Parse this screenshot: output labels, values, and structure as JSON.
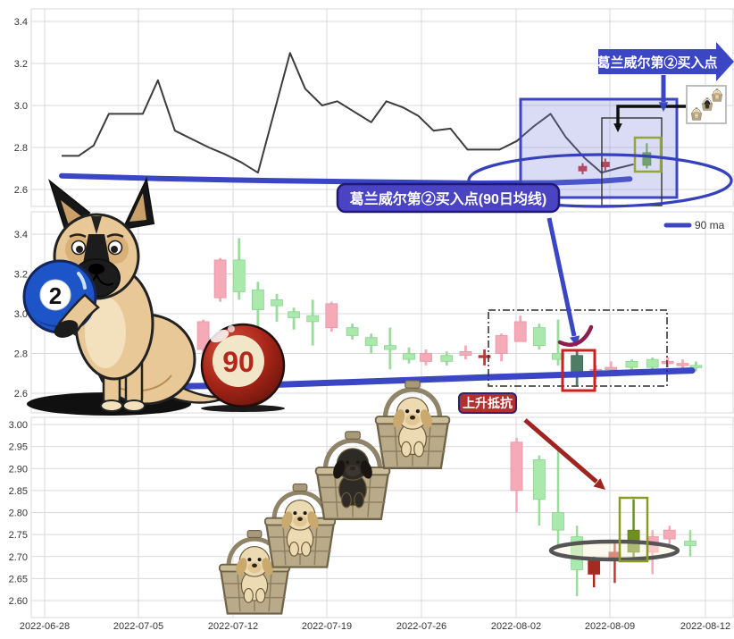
{
  "annotations": {
    "banner_top": "葛兰威尔第②买入点",
    "mid_label": "葛兰威尔第②买入点(90日均线)",
    "resist_label": "上升抵抗",
    "legend_90ma": "90 ma"
  },
  "decorations": {
    "dog_illustration": "belgian-malinois-holding-ball",
    "ball2_label": "2",
    "ball90_label": "90",
    "puppy_baskets": [
      "golden-puppy-basket",
      "golden-puppy-basket",
      "black-puppy-basket",
      "golden-puppy-basket"
    ],
    "inset_thumbnail": "mini-puppy-basket-diagonal"
  },
  "colors": {
    "up_green": "#a9e9ab",
    "up_green_edge": "#8fd392",
    "down_pink": "#f5aab8",
    "down_pink_edge": "#eb93a4",
    "red": "#c63535",
    "dark_red": "#a52a21",
    "dark_green": "#4e7d66",
    "olive": "#6f8f1f",
    "boxed_green": "#72b043",
    "ma_blue": "#3a46c4",
    "line_dark": "#3c3c3c",
    "banner_blue": "#3a46c4",
    "annotation_indigo": "#4a44c2",
    "annotation_border": "#1f1878",
    "resist_red": "#b23030",
    "resist_border": "#2c2470",
    "grid": "#d9d9d9",
    "axis_text": "#333333",
    "highlight_box_red": "#cc1f1f",
    "highlight_box_olive": "#8a9a25",
    "highlight_box_green": "#95a53a",
    "ellipse_blue": "#3540bb",
    "arrow_dark_red": "#9e2420",
    "maroon_swoosh": "#8d1e4e",
    "gray_ellipse": "#555555",
    "shade_fill": "rgba(120,130,215,0.28)"
  },
  "x_axis": {
    "tick_labels": [
      "2022-06-28",
      "2022-07-05",
      "2022-07-12",
      "2022-07-19",
      "2022-07-26",
      "2022-08-02",
      "2022-08-09",
      "2022-08-12"
    ],
    "note": "trading-day axis"
  },
  "chart_data": [
    {
      "id": "top",
      "type": "line",
      "title": "",
      "y_ticks": [
        "3.4",
        "3.2",
        "3.0",
        "2.8",
        "2.6"
      ],
      "ylim": [
        2.52,
        3.46
      ],
      "close_line": [
        [
          0.9,
          2.76
        ],
        [
          1.8,
          2.76
        ],
        [
          2.6,
          2.81
        ],
        [
          3.4,
          2.96
        ],
        [
          5.2,
          2.96
        ],
        [
          6.0,
          3.12
        ],
        [
          6.9,
          2.88
        ],
        [
          7.8,
          2.84
        ],
        [
          8.7,
          2.8
        ],
        [
          9.5,
          2.77
        ],
        [
          10.4,
          2.73
        ],
        [
          11.3,
          2.68
        ],
        [
          13.0,
          3.25
        ],
        [
          13.8,
          3.08
        ],
        [
          14.7,
          3.0
        ],
        [
          15.5,
          3.02
        ],
        [
          16.4,
          2.97
        ],
        [
          17.3,
          2.92
        ],
        [
          18.1,
          3.02
        ],
        [
          19.0,
          2.99
        ],
        [
          19.8,
          2.95
        ],
        [
          20.6,
          2.88
        ],
        [
          21.5,
          2.89
        ],
        [
          22.4,
          2.79
        ],
        [
          24.1,
          2.79
        ],
        [
          25.0,
          2.83
        ],
        [
          25.9,
          2.9
        ],
        [
          26.8,
          2.96
        ],
        [
          27.6,
          2.85
        ],
        [
          28.6,
          2.75
        ],
        [
          29.5,
          2.68
        ],
        [
          30.3,
          2.7
        ],
        [
          31.2,
          2.72
        ]
      ],
      "ma90": [
        [
          0.9,
          2.665
        ],
        [
          6,
          2.652
        ],
        [
          12,
          2.642
        ],
        [
          18,
          2.635
        ],
        [
          23,
          2.63
        ],
        [
          27,
          2.632
        ],
        [
          29.5,
          2.64
        ],
        [
          31,
          2.65
        ]
      ],
      "mini_candles": [
        [
          28.5,
          2.71,
          2.725,
          2.672,
          2.688,
          "r"
        ],
        [
          29.7,
          2.73,
          2.747,
          2.69,
          2.708,
          "r"
        ],
        [
          31.9,
          2.715,
          2.82,
          2.7,
          2.775,
          "gb"
        ]
      ]
    },
    {
      "id": "middle",
      "type": "candlestick",
      "y_ticks": [
        "3.4",
        "3.2",
        "3.0",
        "2.8",
        "2.6"
      ],
      "ylim": [
        2.5,
        3.48
      ],
      "candles": [
        [
          7.4,
          2.67,
          2.72,
          2.64,
          2.71,
          "g"
        ],
        [
          8.4,
          2.96,
          2.97,
          2.71,
          2.82,
          "p"
        ],
        [
          9.3,
          3.27,
          3.28,
          3.06,
          3.08,
          "p"
        ],
        [
          10.3,
          3.11,
          3.38,
          3.07,
          3.27,
          "g"
        ],
        [
          11.3,
          3.02,
          3.16,
          2.8,
          3.12,
          "g"
        ],
        [
          12.3,
          3.04,
          3.1,
          2.96,
          3.07,
          "g"
        ],
        [
          13.2,
          2.98,
          3.03,
          2.92,
          3.01,
          "g"
        ],
        [
          14.2,
          2.96,
          3.07,
          2.84,
          2.99,
          "g"
        ],
        [
          15.2,
          3.05,
          3.06,
          2.91,
          2.93,
          "p"
        ],
        [
          16.3,
          2.89,
          2.95,
          2.87,
          2.93,
          "g"
        ],
        [
          17.3,
          2.84,
          2.9,
          2.8,
          2.88,
          "g"
        ],
        [
          18.3,
          2.82,
          2.93,
          2.72,
          2.84,
          "g"
        ],
        [
          19.3,
          2.77,
          2.83,
          2.75,
          2.8,
          "g"
        ],
        [
          20.2,
          2.8,
          2.82,
          2.74,
          2.76,
          "p"
        ],
        [
          21.3,
          2.76,
          2.81,
          2.74,
          2.79,
          "g"
        ],
        [
          22.3,
          2.81,
          2.84,
          2.77,
          2.79,
          "p"
        ],
        [
          23.3,
          2.79,
          2.82,
          2.74,
          2.78,
          "r"
        ],
        [
          24.2,
          2.89,
          2.9,
          2.76,
          2.8,
          "p"
        ],
        [
          25.2,
          2.96,
          2.99,
          2.86,
          2.86,
          "p"
        ],
        [
          26.2,
          2.84,
          2.95,
          2.82,
          2.93,
          "g"
        ],
        [
          27.2,
          2.77,
          2.97,
          2.74,
          2.8,
          "g"
        ],
        [
          28.2,
          2.7,
          2.81,
          2.64,
          2.79,
          "d"
        ],
        [
          29.2,
          2.72,
          2.74,
          2.67,
          2.7,
          "p"
        ],
        [
          30.0,
          2.73,
          2.76,
          2.69,
          2.72,
          "p"
        ],
        [
          31.1,
          2.73,
          2.77,
          2.71,
          2.76,
          "g"
        ],
        [
          32.2,
          2.73,
          2.78,
          2.72,
          2.77,
          "g"
        ],
        [
          33.0,
          2.76,
          2.78,
          2.73,
          2.75,
          "p"
        ],
        [
          33.8,
          2.75,
          2.77,
          2.72,
          2.74,
          "p"
        ],
        [
          34.5,
          2.73,
          2.76,
          2.71,
          2.74,
          "g"
        ]
      ],
      "ma90": [
        [
          7.2,
          2.635
        ],
        [
          12,
          2.642
        ],
        [
          18,
          2.662
        ],
        [
          24,
          2.682
        ],
        [
          28,
          2.694
        ],
        [
          31,
          2.704
        ],
        [
          34.3,
          2.714
        ]
      ],
      "legend": "90 ma"
    },
    {
      "id": "bottom",
      "type": "candlestick",
      "y_ticks": [
        "3.00",
        "2.95",
        "2.90",
        "2.85",
        "2.80",
        "2.75",
        "2.70",
        "2.65",
        "2.60"
      ],
      "ylim": [
        2.56,
        3.02
      ],
      "candles": [
        [
          25.0,
          2.96,
          2.97,
          2.8,
          2.85,
          "p"
        ],
        [
          26.2,
          2.83,
          2.93,
          2.77,
          2.92,
          "g"
        ],
        [
          27.2,
          2.76,
          2.94,
          2.72,
          2.8,
          "g"
        ],
        [
          28.2,
          2.67,
          2.77,
          2.61,
          2.745,
          "g"
        ],
        [
          29.1,
          2.69,
          2.7,
          2.63,
          2.66,
          "r2"
        ],
        [
          30.2,
          2.71,
          2.73,
          2.64,
          2.695,
          "r"
        ],
        [
          31.2,
          2.71,
          2.83,
          2.695,
          2.76,
          "o"
        ],
        [
          32.2,
          2.745,
          2.76,
          2.66,
          2.71,
          "p"
        ],
        [
          33.1,
          2.76,
          2.77,
          2.72,
          2.74,
          "p"
        ],
        [
          34.2,
          2.725,
          2.76,
          2.7,
          2.735,
          "g"
        ]
      ]
    }
  ]
}
